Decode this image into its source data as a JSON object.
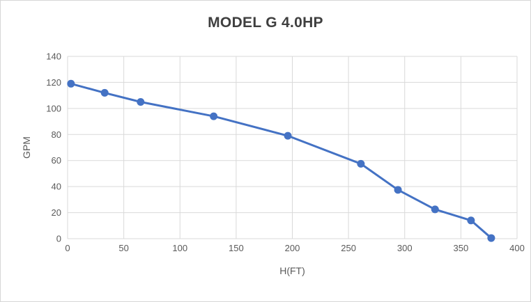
{
  "window": {
    "background": "#ffffff",
    "border_color": "#d6d6d6"
  },
  "chart_data": {
    "type": "line",
    "title": "MODEL G 4.0HP",
    "xlabel": "H(FT)",
    "ylabel": "GPM",
    "xlim": [
      0,
      400
    ],
    "ylim": [
      0,
      140
    ],
    "x_ticks": [
      0,
      50,
      100,
      150,
      200,
      250,
      300,
      350,
      400
    ],
    "y_ticks": [
      0,
      20,
      40,
      60,
      80,
      100,
      120,
      140
    ],
    "grid": true,
    "legend": false,
    "series": [
      {
        "name": "MODEL G 4.0HP",
        "marker": "circle",
        "points": [
          [
            3,
            119
          ],
          [
            33,
            112
          ],
          [
            65,
            105
          ],
          [
            130,
            94
          ],
          [
            196,
            79
          ],
          [
            261,
            57.5
          ],
          [
            294,
            37.5
          ],
          [
            327,
            22.5
          ],
          [
            359,
            14
          ],
          [
            377,
            0.5
          ]
        ]
      }
    ],
    "colors": {
      "series": "#4472C4",
      "grid": "#d9d9d9",
      "tick_label": "#595959",
      "title": "#3f3f3f",
      "axis_title": "#595959"
    }
  }
}
